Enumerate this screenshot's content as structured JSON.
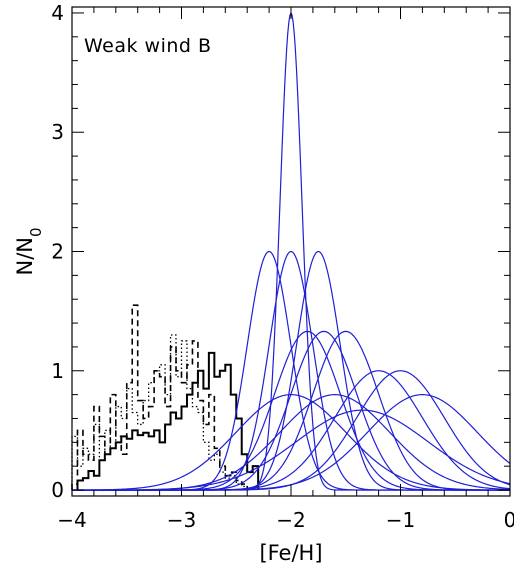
{
  "chart_data": {
    "type": "line",
    "annotation": "Weak wind B",
    "xlabel": "[Fe/H]",
    "ylabel_main": "N/N",
    "ylabel_sub": "0",
    "xlim": [
      -4,
      0
    ],
    "ylim": [
      -0.05,
      4.05
    ],
    "grid": false,
    "legend": "none",
    "x_ticks": [
      -4,
      -3,
      -2,
      -1,
      0
    ],
    "x_tick_labels": [
      "−4",
      "−3",
      "−2",
      "−1",
      "0"
    ],
    "y_ticks": [
      0,
      1,
      2,
      3,
      4
    ],
    "y_tick_labels": [
      "0",
      "1",
      "2",
      "3",
      "4"
    ],
    "x_minor_step": 0.2,
    "y_minor_step": 0.2,
    "colors": {
      "curves": "#1f1fd6",
      "histograms": "#000000"
    },
    "gaussian_series": [
      {
        "mu": -2.0,
        "sigma": 0.1,
        "amp": 4.0
      },
      {
        "mu": -2.2,
        "sigma": 0.2,
        "amp": 2.0
      },
      {
        "mu": -2.0,
        "sigma": 0.2,
        "amp": 2.0
      },
      {
        "mu": -1.75,
        "sigma": 0.2,
        "amp": 2.0
      },
      {
        "mu": -1.85,
        "sigma": 0.3,
        "amp": 1.33
      },
      {
        "mu": -1.7,
        "sigma": 0.3,
        "amp": 1.33
      },
      {
        "mu": -1.5,
        "sigma": 0.3,
        "amp": 1.33
      },
      {
        "mu": -1.2,
        "sigma": 0.4,
        "amp": 1.0
      },
      {
        "mu": -1.0,
        "sigma": 0.4,
        "amp": 1.0
      },
      {
        "mu": -2.0,
        "sigma": 0.5,
        "amp": 0.8
      },
      {
        "mu": -1.6,
        "sigma": 0.5,
        "amp": 0.8
      },
      {
        "mu": -0.8,
        "sigma": 0.5,
        "amp": 0.8
      },
      {
        "mu": -1.35,
        "sigma": 0.6,
        "amp": 0.67
      }
    ],
    "histograms": [
      {
        "style": "solid",
        "edges": [
          -3.95,
          -3.9,
          -3.85,
          -3.8,
          -3.75,
          -3.7,
          -3.65,
          -3.6,
          -3.55,
          -3.5,
          -3.45,
          -3.4,
          -3.35,
          -3.3,
          -3.25,
          -3.2,
          -3.15,
          -3.1,
          -3.05,
          -3.0,
          -2.95,
          -2.9,
          -2.85,
          -2.8,
          -2.75,
          -2.7,
          -2.65,
          -2.6,
          -2.55,
          -2.5,
          -2.45,
          -2.4,
          -2.35,
          -2.3
        ],
        "values": [
          0.08,
          0.1,
          0.16,
          0.12,
          0.25,
          0.3,
          0.35,
          0.4,
          0.45,
          0.43,
          0.5,
          0.46,
          0.48,
          0.45,
          0.5,
          0.4,
          0.55,
          0.65,
          0.6,
          0.7,
          0.8,
          0.9,
          1.0,
          0.85,
          1.15,
          0.95,
          1.0,
          1.05,
          0.8,
          0.6,
          0.3,
          0.15,
          0.2
        ]
      },
      {
        "style": "dashed",
        "edges": [
          -4.0,
          -3.95,
          -3.9,
          -3.85,
          -3.8,
          -3.75,
          -3.7,
          -3.65,
          -3.6,
          -3.55,
          -3.5,
          -3.45,
          -3.4,
          -3.35,
          -3.3,
          -3.25,
          -3.2,
          -3.15,
          -3.1,
          -3.05,
          -3.0,
          -2.95,
          -2.9,
          -2.85,
          -2.8,
          -2.75,
          -2.7,
          -2.65,
          -2.6,
          -2.55,
          -2.5,
          -2.45,
          -2.4
        ],
        "values": [
          0.05,
          0.5,
          0.3,
          0.25,
          0.7,
          0.45,
          0.3,
          0.8,
          0.45,
          0.3,
          0.9,
          1.55,
          0.75,
          0.6,
          0.7,
          1.0,
          0.95,
          0.7,
          1.2,
          1.0,
          0.9,
          1.05,
          1.25,
          0.75,
          0.55,
          0.8,
          0.35,
          0.2,
          0.12,
          0.15,
          0.08,
          0.05
        ]
      },
      {
        "style": "dotted",
        "edges": [
          -4.0,
          -3.95,
          -3.9,
          -3.85,
          -3.8,
          -3.75,
          -3.7,
          -3.65,
          -3.6,
          -3.55,
          -3.5,
          -3.45,
          -3.4,
          -3.35,
          -3.3,
          -3.25,
          -3.2,
          -3.15,
          -3.1,
          -3.05,
          -3.0,
          -2.95,
          -2.9,
          -2.85,
          -2.8,
          -2.75,
          -2.7,
          -2.65,
          -2.6,
          -2.55,
          -2.5,
          -2.45,
          -2.4
        ],
        "values": [
          0.45,
          0.2,
          0.35,
          0.3,
          0.55,
          0.25,
          0.5,
          0.35,
          0.7,
          0.6,
          0.85,
          0.65,
          0.55,
          0.75,
          0.9,
          1.0,
          1.05,
          0.8,
          1.3,
          0.95,
          1.25,
          0.85,
          0.7,
          0.65,
          0.4,
          0.25,
          0.3,
          0.15,
          0.1,
          0.12,
          0.05,
          0.03
        ]
      }
    ]
  }
}
